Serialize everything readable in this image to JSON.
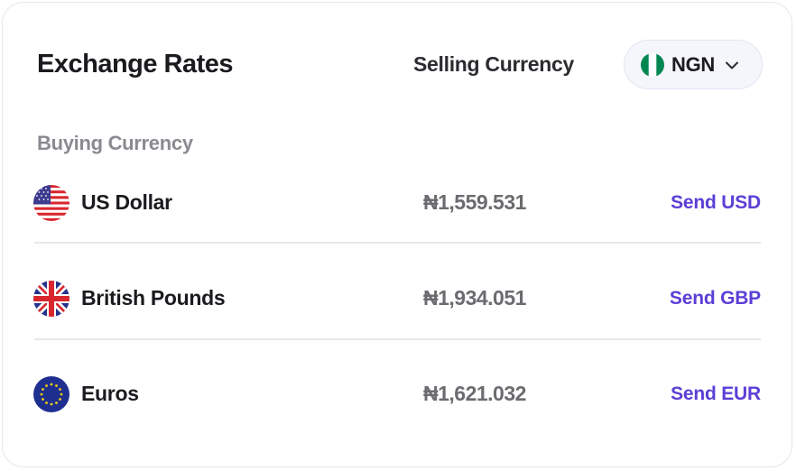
{
  "header": {
    "title": "Exchange Rates",
    "selling_label": "Selling Currency",
    "selling_currency": {
      "code": "NGN",
      "flag_icon": "nigeria-flag-icon"
    }
  },
  "buying_label": "Buying Currency",
  "rates": [
    {
      "name": "US Dollar",
      "rate": "₦1,559.531",
      "action": "Send USD",
      "flag_icon": "us-flag-icon"
    },
    {
      "name": "British Pounds",
      "rate": "₦1,934.051",
      "action": "Send GBP",
      "flag_icon": "uk-flag-icon"
    },
    {
      "name": "Euros",
      "rate": "₦1,621.032",
      "action": "Send EUR",
      "flag_icon": "eu-flag-icon"
    }
  ],
  "colors": {
    "accent": "#5b3fd6",
    "text": "#1b1b1f",
    "muted": "#8a8a90",
    "rate": "#6b6b70",
    "border": "#e6e6ee"
  }
}
